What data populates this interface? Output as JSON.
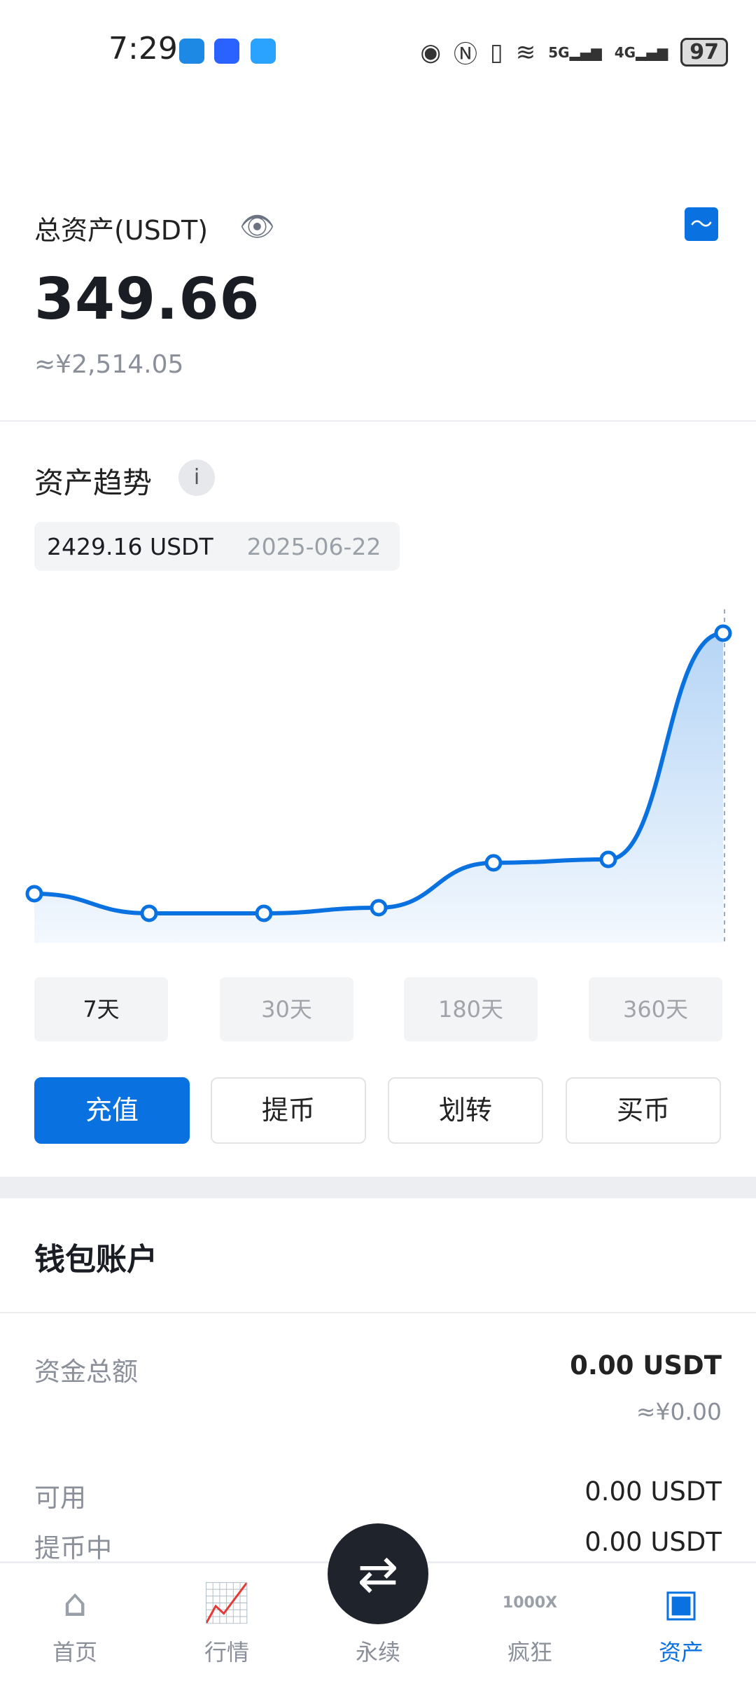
{
  "status": {
    "time": "7:29",
    "battery": "97",
    "network": [
      "5G",
      "4G"
    ]
  },
  "header": {
    "title": "总资产(USDT)",
    "total": "349.66",
    "cny": "≈¥2,514.05"
  },
  "trend": {
    "title": "资产趋势",
    "info": "i",
    "selected_value": "2429.16 USDT",
    "selected_date": "2025-06-22",
    "ranges": [
      "7天",
      "30天",
      "180天",
      "360天"
    ],
    "active_range": "7天"
  },
  "chart_data": {
    "type": "area",
    "series": [
      {
        "values": [
          385,
          231,
          231,
          275,
          627,
          654,
          2429.16
        ]
      }
    ],
    "color": "#0a72e0"
  },
  "actions": [
    "充值",
    "提币",
    "划转",
    "买币"
  ],
  "wallet": {
    "title": "钱包账户",
    "rows": [
      {
        "label": "资金总额",
        "value": "0.00 USDT",
        "sub": "≈¥0.00"
      },
      {
        "label": "可用",
        "value": "0.00 USDT"
      },
      {
        "label": "提币中",
        "value": "0.00 USDT"
      }
    ]
  },
  "nav": [
    {
      "label": "首页",
      "icon": "home-icon"
    },
    {
      "label": "行情",
      "icon": "market-icon"
    },
    {
      "label": "永续",
      "icon": "swap-icon"
    },
    {
      "label": "疯狂",
      "icon": "1000x-icon",
      "badge": "1000X"
    },
    {
      "label": "资产",
      "icon": "wallet-icon"
    }
  ],
  "accent": "#0a72e0"
}
